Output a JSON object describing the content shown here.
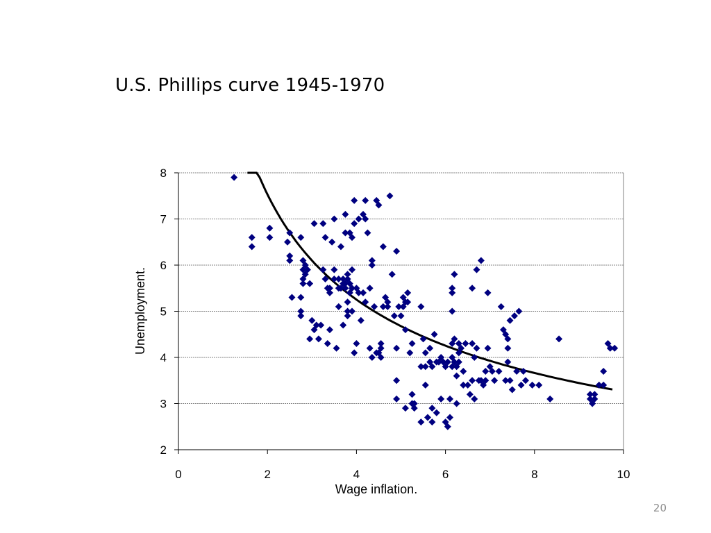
{
  "slide": {
    "title": "U.S. Phillips curve 1945-1970",
    "page_number": "20"
  },
  "colors": {
    "points": "#000080",
    "curve": "#000000",
    "grid": "#808080"
  },
  "chart_data": {
    "type": "scatter",
    "title": "",
    "xlabel": "Wage inflation.",
    "ylabel": "Unemployment.",
    "xlim": [
      0,
      10
    ],
    "ylim": [
      2,
      8
    ],
    "xticks": [
      0,
      2,
      4,
      6,
      8,
      10
    ],
    "yticks": [
      2,
      3,
      4,
      5,
      6,
      7,
      8
    ],
    "grid": "horizontal dashed",
    "marker": "diamond",
    "points": [
      [
        1.25,
        7.9
      ],
      [
        1.65,
        6.6
      ],
      [
        1.65,
        6.4
      ],
      [
        2.05,
        6.6
      ],
      [
        2.05,
        6.8
      ],
      [
        2.45,
        6.5
      ],
      [
        2.5,
        6.7
      ],
      [
        2.5,
        6.2
      ],
      [
        2.5,
        6.1
      ],
      [
        2.55,
        5.3
      ],
      [
        2.75,
        6.6
      ],
      [
        2.75,
        5.3
      ],
      [
        2.75,
        5.0
      ],
      [
        2.75,
        4.9
      ],
      [
        2.8,
        6.1
      ],
      [
        2.8,
        5.9
      ],
      [
        2.8,
        5.7
      ],
      [
        2.8,
        5.6
      ],
      [
        2.85,
        6.0
      ],
      [
        2.85,
        5.8
      ],
      [
        2.9,
        5.9
      ],
      [
        2.95,
        4.4
      ],
      [
        3.0,
        4.8
      ],
      [
        3.05,
        6.9
      ],
      [
        3.05,
        4.6
      ],
      [
        3.1,
        4.7
      ],
      [
        3.15,
        4.4
      ],
      [
        3.2,
        4.7
      ],
      [
        3.25,
        6.9
      ],
      [
        3.25,
        5.9
      ],
      [
        3.3,
        6.6
      ],
      [
        3.3,
        5.7
      ],
      [
        3.35,
        5.5
      ],
      [
        3.35,
        4.3
      ],
      [
        3.4,
        4.6
      ],
      [
        3.4,
        5.4
      ],
      [
        3.45,
        6.5
      ],
      [
        3.5,
        7.0
      ],
      [
        3.5,
        5.9
      ],
      [
        3.5,
        5.7
      ],
      [
        3.55,
        4.2
      ],
      [
        3.6,
        5.7
      ],
      [
        3.6,
        5.5
      ],
      [
        3.6,
        5.1
      ],
      [
        3.65,
        6.4
      ],
      [
        3.65,
        5.5
      ],
      [
        3.7,
        5.7
      ],
      [
        3.7,
        5.6
      ],
      [
        3.7,
        4.7
      ],
      [
        3.75,
        7.1
      ],
      [
        3.75,
        6.7
      ],
      [
        3.75,
        5.6
      ],
      [
        3.8,
        5.8
      ],
      [
        3.8,
        5.7
      ],
      [
        3.8,
        5.2
      ],
      [
        3.8,
        5.0
      ],
      [
        3.8,
        4.9
      ],
      [
        3.85,
        6.7
      ],
      [
        3.85,
        5.6
      ],
      [
        3.85,
        5.4
      ],
      [
        3.9,
        6.6
      ],
      [
        3.9,
        5.9
      ],
      [
        3.9,
        5.5
      ],
      [
        3.95,
        7.4
      ],
      [
        3.95,
        6.9
      ],
      [
        3.95,
        4.1
      ],
      [
        4.0,
        5.5
      ],
      [
        4.0,
        4.3
      ],
      [
        4.05,
        7.0
      ],
      [
        4.1,
        4.8
      ],
      [
        4.15,
        7.1
      ],
      [
        4.15,
        5.4
      ],
      [
        4.2,
        7.4
      ],
      [
        4.2,
        7.0
      ],
      [
        4.2,
        5.2
      ],
      [
        4.25,
        6.7
      ],
      [
        4.3,
        5.5
      ],
      [
        4.3,
        4.2
      ],
      [
        4.35,
        6.1
      ],
      [
        4.35,
        6.0
      ],
      [
        4.35,
        4.0
      ],
      [
        4.4,
        5.1
      ],
      [
        4.45,
        7.4
      ],
      [
        4.5,
        7.3
      ],
      [
        4.5,
        4.1
      ],
      [
        4.55,
        4.3
      ],
      [
        4.55,
        4.2
      ],
      [
        4.55,
        4.0
      ],
      [
        4.6,
        6.4
      ],
      [
        4.6,
        5.1
      ],
      [
        4.65,
        5.3
      ],
      [
        4.7,
        5.1
      ],
      [
        4.7,
        5.2
      ],
      [
        4.75,
        7.5
      ],
      [
        4.8,
        5.8
      ],
      [
        4.85,
        4.9
      ],
      [
        4.9,
        6.3
      ],
      [
        4.9,
        4.2
      ],
      [
        4.9,
        3.5
      ],
      [
        4.9,
        3.1
      ],
      [
        4.95,
        5.1
      ],
      [
        5.0,
        4.9
      ],
      [
        5.05,
        5.3
      ],
      [
        5.05,
        5.1
      ],
      [
        5.1,
        5.2
      ],
      [
        5.1,
        4.6
      ],
      [
        5.1,
        2.9
      ],
      [
        5.15,
        5.4
      ],
      [
        5.15,
        5.2
      ],
      [
        5.2,
        4.1
      ],
      [
        5.25,
        4.3
      ],
      [
        5.25,
        3.2
      ],
      [
        5.25,
        3.0
      ],
      [
        5.3,
        2.9
      ],
      [
        5.3,
        3.0
      ],
      [
        5.45,
        5.1
      ],
      [
        5.45,
        3.8
      ],
      [
        5.45,
        2.6
      ],
      [
        5.5,
        4.4
      ],
      [
        5.55,
        4.1
      ],
      [
        5.55,
        3.8
      ],
      [
        5.55,
        3.4
      ],
      [
        5.6,
        2.7
      ],
      [
        5.65,
        4.2
      ],
      [
        5.65,
        3.9
      ],
      [
        5.7,
        3.8
      ],
      [
        5.7,
        2.9
      ],
      [
        5.7,
        2.6
      ],
      [
        5.75,
        4.5
      ],
      [
        5.8,
        3.9
      ],
      [
        5.8,
        2.8
      ],
      [
        5.85,
        3.9
      ],
      [
        5.9,
        4.0
      ],
      [
        5.9,
        3.1
      ],
      [
        5.95,
        3.9
      ],
      [
        6.0,
        3.8
      ],
      [
        6.0,
        2.6
      ],
      [
        6.05,
        3.9
      ],
      [
        6.05,
        2.5
      ],
      [
        6.1,
        3.1
      ],
      [
        6.1,
        2.7
      ],
      [
        6.15,
        4.3
      ],
      [
        6.15,
        4.0
      ],
      [
        6.15,
        3.8
      ],
      [
        6.15,
        5.0
      ],
      [
        6.15,
        5.5
      ],
      [
        6.15,
        5.4
      ],
      [
        6.2,
        5.8
      ],
      [
        6.2,
        4.4
      ],
      [
        6.2,
        3.9
      ],
      [
        6.25,
        3.8
      ],
      [
        6.25,
        3.6
      ],
      [
        6.25,
        3.0
      ],
      [
        6.3,
        4.3
      ],
      [
        6.3,
        4.1
      ],
      [
        6.3,
        3.9
      ],
      [
        6.35,
        4.2
      ],
      [
        6.4,
        3.7
      ],
      [
        6.4,
        3.4
      ],
      [
        6.45,
        4.3
      ],
      [
        6.5,
        3.4
      ],
      [
        6.55,
        3.2
      ],
      [
        6.6,
        4.3
      ],
      [
        6.6,
        5.5
      ],
      [
        6.6,
        3.5
      ],
      [
        6.65,
        3.1
      ],
      [
        6.65,
        4.0
      ],
      [
        6.7,
        5.9
      ],
      [
        6.7,
        4.2
      ],
      [
        6.75,
        3.5
      ],
      [
        6.8,
        6.1
      ],
      [
        6.8,
        3.5
      ],
      [
        6.85,
        3.4
      ],
      [
        6.9,
        3.7
      ],
      [
        6.9,
        3.5
      ],
      [
        6.95,
        5.4
      ],
      [
        6.95,
        4.2
      ],
      [
        7.0,
        3.8
      ],
      [
        7.05,
        3.7
      ],
      [
        7.1,
        3.5
      ],
      [
        7.2,
        3.7
      ],
      [
        7.25,
        5.1
      ],
      [
        7.3,
        4.6
      ],
      [
        7.35,
        4.5
      ],
      [
        7.35,
        3.5
      ],
      [
        7.4,
        4.4
      ],
      [
        7.4,
        4.2
      ],
      [
        7.4,
        3.9
      ],
      [
        7.45,
        3.5
      ],
      [
        7.45,
        4.8
      ],
      [
        7.5,
        3.3
      ],
      [
        7.55,
        4.9
      ],
      [
        7.6,
        3.7
      ],
      [
        7.65,
        5.0
      ],
      [
        7.7,
        3.4
      ],
      [
        7.75,
        3.7
      ],
      [
        7.8,
        3.5
      ],
      [
        7.95,
        3.4
      ],
      [
        8.1,
        3.4
      ],
      [
        8.35,
        3.1
      ],
      [
        8.55,
        4.4
      ],
      [
        9.25,
        3.2
      ],
      [
        9.25,
        3.1
      ],
      [
        9.3,
        3.0
      ],
      [
        9.35,
        3.1
      ],
      [
        9.35,
        3.2
      ],
      [
        9.45,
        3.4
      ],
      [
        9.55,
        3.4
      ],
      [
        9.55,
        3.7
      ],
      [
        9.65,
        4.3
      ],
      [
        9.7,
        4.2
      ],
      [
        9.8,
        4.2
      ],
      [
        2.95,
        5.6
      ],
      [
        3.4,
        5.5
      ],
      [
        3.75,
        5.5
      ],
      [
        3.9,
        5.0
      ],
      [
        4.05,
        5.4
      ],
      [
        4.45,
        4.1
      ]
    ],
    "trend_curve": {
      "type": "power",
      "a": 10.8,
      "b": -0.52,
      "x_range": [
        1.55,
        9.75
      ]
    }
  }
}
